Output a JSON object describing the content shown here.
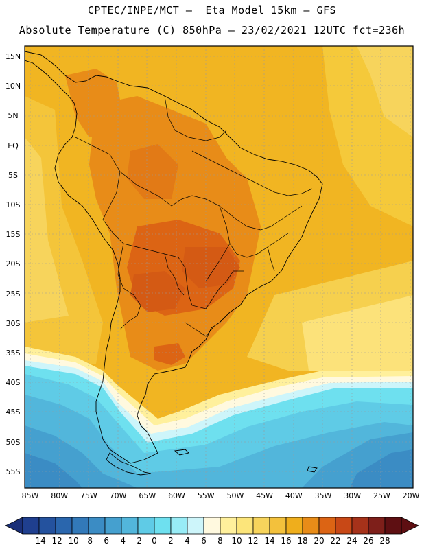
{
  "header": {
    "title_line1": "CPTEC/INPE/MCT —  Eta Model 15km — GFS",
    "title_line2": "Absolute Temperature (C) 850hPa — 23/02/2021 12UTC fct=236h"
  },
  "map": {
    "lat_labels": [
      "15N",
      "10N",
      "5N",
      "EQ",
      "5S",
      "10S",
      "15S",
      "20S",
      "25S",
      "30S",
      "35S",
      "40S",
      "45S",
      "50S",
      "55S"
    ],
    "lon_labels": [
      "85W",
      "80W",
      "75W",
      "70W",
      "65W",
      "60W",
      "55W",
      "50W",
      "45W",
      "40W",
      "35W",
      "30W",
      "25W",
      "20W"
    ]
  },
  "colorbar": {
    "values": [
      "-14",
      "-12",
      "-10",
      "-8",
      "-6",
      "-4",
      "-2",
      "0",
      "2",
      "4",
      "6",
      "8",
      "10",
      "12",
      "14",
      "16",
      "18",
      "20",
      "22",
      "24",
      "26",
      "28"
    ],
    "colors": [
      "#1f3f8f",
      "#24529e",
      "#2a66ad",
      "#3279b9",
      "#3b8cc4",
      "#45a0cf",
      "#52b6db",
      "#5fcbe6",
      "#6ee0ef",
      "#98ecf6",
      "#cdf5fa",
      "#fff9df",
      "#fff09c",
      "#fce57a",
      "#f7d45c",
      "#f3c13c",
      "#efae1c",
      "#e88c18",
      "#dc6414",
      "#c84816",
      "#a6321a",
      "#7e1f1a",
      "#5e0f12"
    ]
  },
  "palette": {
    "land_outline": "#000000",
    "grid": "#9a9a9a",
    "ocean_warm": "#f1b826",
    "ocean_cool": "#f6d24e"
  }
}
